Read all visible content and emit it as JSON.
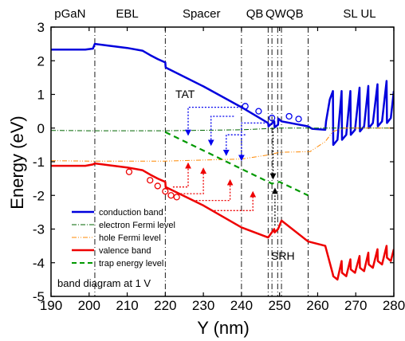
{
  "chart_data": {
    "type": "line",
    "xlabel": "Y (nm)",
    "ylabel": "Energy (eV)",
    "xlim": [
      190,
      280
    ],
    "ylim": [
      -5,
      3
    ],
    "xticks": [
      190,
      200,
      210,
      220,
      230,
      240,
      250,
      260,
      270,
      280
    ],
    "yticks": [
      -5,
      -4,
      -3,
      -2,
      -1,
      0,
      1,
      2,
      3
    ],
    "regions": [
      {
        "label": "pGaN",
        "x": 195
      },
      {
        "label": "EBL",
        "x": 210
      },
      {
        "label": "Spacer",
        "x": 229.5
      },
      {
        "label": "QB",
        "x": 243.5
      },
      {
        "label": "QW",
        "x": 249
      },
      {
        "label": "QB",
        "x": 254
      },
      {
        "label": "SL UL",
        "x": 271
      }
    ],
    "boundaries": [
      201.5,
      220,
      240,
      247,
      248,
      249.5,
      250.5,
      257.5
    ],
    "series": [
      {
        "name": "conduction band",
        "color": "#0000dd",
        "style": "solid",
        "points": [
          [
            190,
            2.33
          ],
          [
            199,
            2.33
          ],
          [
            201,
            2.36
          ],
          [
            201.5,
            2.5
          ],
          [
            205,
            2.45
          ],
          [
            210,
            2.38
          ],
          [
            214,
            2.3
          ],
          [
            216,
            2.17
          ],
          [
            218,
            2.05
          ],
          [
            220,
            1.95
          ],
          [
            220.1,
            1.8
          ],
          [
            230,
            1.24
          ],
          [
            240,
            0.62
          ],
          [
            247,
            0.15
          ],
          [
            247.1,
            0.05
          ],
          [
            248.6,
            0.2
          ],
          [
            248.7,
            0.02
          ],
          [
            249.6,
            0.1
          ],
          [
            249.7,
            0.28
          ],
          [
            250.5,
            0.2
          ],
          [
            257.5,
            0.05
          ],
          [
            258.5,
            -0.02
          ],
          [
            262,
            -0.05
          ],
          [
            262.2,
            0.2
          ],
          [
            263.2,
            0.85
          ],
          [
            264,
            1.1
          ],
          [
            264.1,
            -0.5
          ],
          [
            265.2,
            -0.35
          ],
          [
            266.3,
            1.1
          ],
          [
            266.4,
            -0.35
          ],
          [
            267.5,
            -0.2
          ],
          [
            268.6,
            1.1
          ],
          [
            268.7,
            -0.2
          ],
          [
            269.8,
            -0.05
          ],
          [
            271,
            1.2
          ],
          [
            271.1,
            -0.1
          ],
          [
            272.2,
            0.05
          ],
          [
            273.3,
            1.25
          ],
          [
            273.4,
            0.0
          ],
          [
            274.5,
            0.15
          ],
          [
            275.7,
            1.3
          ],
          [
            275.8,
            0.05
          ],
          [
            276.9,
            0.2
          ],
          [
            278.1,
            1.4
          ],
          [
            278.2,
            0.15
          ],
          [
            279.2,
            0.3
          ],
          [
            280,
            1.1
          ]
        ]
      },
      {
        "name": "electron Fermi level",
        "color": "#006600",
        "style": "dashdot",
        "points": [
          [
            190,
            -0.07
          ],
          [
            200,
            -0.08
          ],
          [
            220,
            -0.08
          ],
          [
            240,
            -0.05
          ],
          [
            250,
            0.0
          ],
          [
            262,
            0.0
          ],
          [
            280,
            0.0
          ]
        ]
      },
      {
        "name": "hole Fermi level",
        "color": "#ff8800",
        "style": "dashdotdot",
        "points": [
          [
            190,
            -0.97
          ],
          [
            200,
            -0.98
          ],
          [
            220,
            -0.98
          ],
          [
            240,
            -0.92
          ],
          [
            247,
            -0.8
          ],
          [
            250,
            -0.72
          ],
          [
            258,
            -0.7
          ],
          [
            262,
            -0.4
          ],
          [
            264,
            -0.1
          ],
          [
            267,
            0.0
          ],
          [
            280,
            0.0
          ]
        ]
      },
      {
        "name": "valence band",
        "color": "#ee0000",
        "style": "solid",
        "points": [
          [
            190,
            -1.12
          ],
          [
            199,
            -1.12
          ],
          [
            201,
            -1.08
          ],
          [
            201.5,
            -1.05
          ],
          [
            205,
            -1.1
          ],
          [
            210,
            -1.17
          ],
          [
            214,
            -1.25
          ],
          [
            216,
            -1.38
          ],
          [
            218,
            -1.5
          ],
          [
            220,
            -1.6
          ],
          [
            220.1,
            -1.75
          ],
          [
            230,
            -2.3
          ],
          [
            240,
            -2.95
          ],
          [
            247,
            -3.25
          ],
          [
            248.6,
            -3.0
          ],
          [
            248.7,
            -3.1
          ],
          [
            249.6,
            -3.0
          ],
          [
            250.5,
            -2.75
          ],
          [
            257.5,
            -3.37
          ],
          [
            262,
            -3.5
          ],
          [
            264,
            -4.35
          ],
          [
            264.1,
            -4.4
          ],
          [
            265.2,
            -4.5
          ],
          [
            266.3,
            -3.95
          ],
          [
            266.4,
            -4.3
          ],
          [
            267.5,
            -4.4
          ],
          [
            268.6,
            -3.9
          ],
          [
            268.7,
            -4.2
          ],
          [
            269.8,
            -4.3
          ],
          [
            271,
            -3.8
          ],
          [
            271.1,
            -4.15
          ],
          [
            272.2,
            -4.25
          ],
          [
            273.3,
            -3.7
          ],
          [
            273.4,
            -4.05
          ],
          [
            274.5,
            -4.15
          ],
          [
            275.7,
            -3.6
          ],
          [
            275.8,
            -3.95
          ],
          [
            276.9,
            -4.05
          ],
          [
            278.1,
            -3.5
          ],
          [
            278.2,
            -3.85
          ],
          [
            279.2,
            -3.95
          ],
          [
            280,
            -3.6
          ]
        ]
      },
      {
        "name": "trap energy level",
        "color": "#009900",
        "style": "dashed",
        "points": [
          [
            220,
            -0.12
          ],
          [
            248,
            -1.65
          ],
          [
            250,
            -1.6
          ],
          [
            257.5,
            -2.0
          ]
        ]
      }
    ],
    "annotations": [
      {
        "text": "TAT",
        "x": 225.5,
        "y": 0.9
      },
      {
        "text": "SRH",
        "x": 252,
        "y": -3.75
      },
      {
        "text": "band diagram at 1 V",
        "x": 192,
        "y": -4.6
      }
    ],
    "legend_position": "bottom-left"
  }
}
